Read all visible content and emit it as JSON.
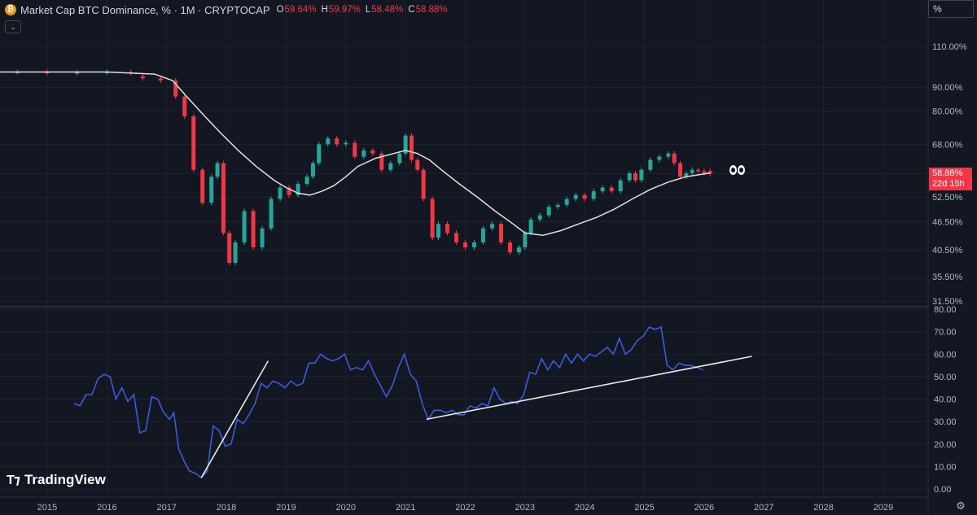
{
  "legend": {
    "title": "Market Cap BTC Dominance, % · 1M · CRYPTOCAP",
    "o_key": "O",
    "o": "59.64%",
    "h_key": "H",
    "h": "59.97%",
    "l_key": "L",
    "l": "58.48%",
    "c_key": "C",
    "c": "58.88%"
  },
  "scale_button": "%",
  "collapse_icon": "chevron-down-icon",
  "price_tag": {
    "value": "58.88%",
    "countdown": "22d 15h"
  },
  "watermark": "TradingView",
  "colors": {
    "up": "#26a69a",
    "down": "#f23645",
    "ma": "#e0e0e0",
    "osc": "#3b5bdb",
    "trend": "#e8e8e8"
  },
  "chart_data": [
    {
      "type": "candlestick",
      "title": "Market Cap BTC Dominance, % · 1M · CRYPTOCAP",
      "ylabel": "",
      "y_scale": "log",
      "yticks": [
        "110.00%",
        "90.00%",
        "80.00%",
        "68.00%",
        "58.88%",
        "52.50%",
        "46.50%",
        "40.50%",
        "35.50%",
        "31.50%"
      ],
      "x_ticks": [
        "2015",
        "2016",
        "2017",
        "2018",
        "2019",
        "2020",
        "2021",
        "2022",
        "2023",
        "2024",
        "2025",
        "2026",
        "2027",
        "2028",
        "2029"
      ],
      "x_tick_values": [
        2015,
        2016,
        2017,
        2018,
        2019,
        2020,
        2021,
        2022,
        2023,
        2024,
        2025,
        2026,
        2027,
        2028,
        2029
      ],
      "candles": [
        {
          "t": 2014.0,
          "o": 97,
          "c": 97
        },
        {
          "t": 2014.5,
          "o": 97,
          "c": 97
        },
        {
          "t": 2015.0,
          "o": 97,
          "c": 96.5
        },
        {
          "t": 2015.5,
          "o": 96.5,
          "c": 96.8
        },
        {
          "t": 2016.0,
          "o": 96.8,
          "c": 97
        },
        {
          "t": 2016.4,
          "o": 97,
          "c": 96.5
        },
        {
          "t": 2016.6,
          "o": 95,
          "c": 94
        },
        {
          "t": 2016.9,
          "o": 94,
          "c": 93
        },
        {
          "t": 2017.15,
          "o": 93,
          "c": 86
        },
        {
          "t": 2017.3,
          "o": 86,
          "c": 78
        },
        {
          "t": 2017.45,
          "o": 78,
          "c": 60
        },
        {
          "t": 2017.6,
          "o": 60,
          "c": 51
        },
        {
          "t": 2017.75,
          "o": 51,
          "c": 58
        },
        {
          "t": 2017.85,
          "o": 58,
          "c": 62
        },
        {
          "t": 2017.95,
          "o": 62,
          "c": 44
        },
        {
          "t": 2018.05,
          "o": 44,
          "c": 38
        },
        {
          "t": 2018.15,
          "o": 38,
          "c": 42
        },
        {
          "t": 2018.3,
          "o": 42,
          "c": 49
        },
        {
          "t": 2018.45,
          "o": 49,
          "c": 41
        },
        {
          "t": 2018.6,
          "o": 41,
          "c": 45
        },
        {
          "t": 2018.75,
          "o": 45,
          "c": 52
        },
        {
          "t": 2018.9,
          "o": 52,
          "c": 55
        },
        {
          "t": 2019.05,
          "o": 55,
          "c": 53
        },
        {
          "t": 2019.2,
          "o": 53,
          "c": 56
        },
        {
          "t": 2019.35,
          "o": 56,
          "c": 58
        },
        {
          "t": 2019.45,
          "o": 58,
          "c": 62
        },
        {
          "t": 2019.55,
          "o": 62,
          "c": 68
        },
        {
          "t": 2019.7,
          "o": 68,
          "c": 70
        },
        {
          "t": 2019.85,
          "o": 70,
          "c": 68
        },
        {
          "t": 2020.0,
          "o": 68,
          "c": 68.5
        },
        {
          "t": 2020.15,
          "o": 68.5,
          "c": 64
        },
        {
          "t": 2020.3,
          "o": 64,
          "c": 66
        },
        {
          "t": 2020.45,
          "o": 66,
          "c": 65
        },
        {
          "t": 2020.6,
          "o": 65,
          "c": 60
        },
        {
          "t": 2020.75,
          "o": 60,
          "c": 62
        },
        {
          "t": 2020.9,
          "o": 62,
          "c": 65
        },
        {
          "t": 2021.0,
          "o": 65,
          "c": 71
        },
        {
          "t": 2021.1,
          "o": 71,
          "c": 63
        },
        {
          "t": 2021.2,
          "o": 63,
          "c": 60
        },
        {
          "t": 2021.3,
          "o": 60,
          "c": 52
        },
        {
          "t": 2021.45,
          "o": 52,
          "c": 43
        },
        {
          "t": 2021.55,
          "o": 43,
          "c": 46
        },
        {
          "t": 2021.7,
          "o": 46,
          "c": 44
        },
        {
          "t": 2021.85,
          "o": 44,
          "c": 42
        },
        {
          "t": 2022.0,
          "o": 42,
          "c": 41
        },
        {
          "t": 2022.15,
          "o": 41,
          "c": 42
        },
        {
          "t": 2022.3,
          "o": 42,
          "c": 45
        },
        {
          "t": 2022.45,
          "o": 45,
          "c": 46
        },
        {
          "t": 2022.6,
          "o": 46,
          "c": 42
        },
        {
          "t": 2022.75,
          "o": 42,
          "c": 40
        },
        {
          "t": 2022.9,
          "o": 40,
          "c": 41
        },
        {
          "t": 2023.0,
          "o": 41,
          "c": 44
        },
        {
          "t": 2023.1,
          "o": 44,
          "c": 47
        },
        {
          "t": 2023.25,
          "o": 47,
          "c": 48
        },
        {
          "t": 2023.4,
          "o": 48,
          "c": 50
        },
        {
          "t": 2023.55,
          "o": 50,
          "c": 50.5
        },
        {
          "t": 2023.7,
          "o": 50.5,
          "c": 52
        },
        {
          "t": 2023.85,
          "o": 52,
          "c": 53
        },
        {
          "t": 2024.0,
          "o": 53,
          "c": 52
        },
        {
          "t": 2024.15,
          "o": 52,
          "c": 54
        },
        {
          "t": 2024.3,
          "o": 54,
          "c": 55
        },
        {
          "t": 2024.45,
          "o": 55,
          "c": 54
        },
        {
          "t": 2024.6,
          "o": 54,
          "c": 57
        },
        {
          "t": 2024.75,
          "o": 57,
          "c": 59
        },
        {
          "t": 2024.85,
          "o": 59,
          "c": 57
        },
        {
          "t": 2024.95,
          "o": 57,
          "c": 60
        },
        {
          "t": 2025.1,
          "o": 60,
          "c": 63
        },
        {
          "t": 2025.25,
          "o": 63,
          "c": 64
        },
        {
          "t": 2025.4,
          "o": 64,
          "c": 65
        },
        {
          "t": 2025.5,
          "o": 65,
          "c": 62
        },
        {
          "t": 2025.6,
          "o": 62,
          "c": 58
        },
        {
          "t": 2025.7,
          "o": 58,
          "c": 59
        },
        {
          "t": 2025.8,
          "o": 59,
          "c": 60
        },
        {
          "t": 2025.9,
          "o": 60,
          "c": 59.6
        },
        {
          "t": 2026.0,
          "o": 59.6,
          "c": 59.1
        },
        {
          "t": 2026.1,
          "o": 59.64,
          "c": 58.88
        }
      ],
      "ma": [
        [
          2014.0,
          97
        ],
        [
          2016.0,
          97
        ],
        [
          2016.8,
          96
        ],
        [
          2017.1,
          93
        ],
        [
          2017.3,
          87
        ],
        [
          2017.6,
          79
        ],
        [
          2017.9,
          72
        ],
        [
          2018.2,
          66
        ],
        [
          2018.5,
          61
        ],
        [
          2018.8,
          57
        ],
        [
          2019.0,
          55
        ],
        [
          2019.2,
          53.5
        ],
        [
          2019.4,
          53
        ],
        [
          2019.6,
          54
        ],
        [
          2019.8,
          55.5
        ],
        [
          2020.0,
          58
        ],
        [
          2020.2,
          61
        ],
        [
          2020.5,
          63.5
        ],
        [
          2020.8,
          65
        ],
        [
          2021.0,
          66
        ],
        [
          2021.2,
          65
        ],
        [
          2021.4,
          63
        ],
        [
          2021.6,
          60
        ],
        [
          2021.9,
          56
        ],
        [
          2022.2,
          52.5
        ],
        [
          2022.5,
          49
        ],
        [
          2022.8,
          46
        ],
        [
          2023.0,
          44
        ],
        [
          2023.3,
          43.5
        ],
        [
          2023.6,
          44.5
        ],
        [
          2023.9,
          46
        ],
        [
          2024.2,
          47.5
        ],
        [
          2024.5,
          49.5
        ],
        [
          2024.8,
          52
        ],
        [
          2025.1,
          54.5
        ],
        [
          2025.4,
          56.5
        ],
        [
          2025.7,
          58
        ],
        [
          2026.0,
          58.8
        ],
        [
          2026.1,
          59
        ]
      ]
    },
    {
      "type": "line",
      "yticks": [
        "80.00",
        "70.00",
        "60.00",
        "50.00",
        "40.00",
        "30.00",
        "20.00",
        "10.00",
        "0.00"
      ],
      "ylim": [
        0,
        80
      ],
      "series": [
        {
          "values": [
            [
              2015.45,
              38
            ],
            [
              2015.55,
              37
            ],
            [
              2015.65,
              42
            ],
            [
              2015.75,
              42
            ],
            [
              2015.85,
              49
            ],
            [
              2015.95,
              51
            ],
            [
              2016.05,
              50
            ],
            [
              2016.15,
              40
            ],
            [
              2016.25,
              45
            ],
            [
              2016.35,
              39
            ],
            [
              2016.45,
              42
            ],
            [
              2016.55,
              25
            ],
            [
              2016.65,
              26
            ],
            [
              2016.75,
              41
            ],
            [
              2016.85,
              40
            ],
            [
              2016.95,
              34
            ],
            [
              2017.05,
              31
            ],
            [
              2017.12,
              34
            ],
            [
              2017.2,
              18
            ],
            [
              2017.3,
              12
            ],
            [
              2017.38,
              8
            ],
            [
              2017.48,
              7
            ],
            [
              2017.58,
              5
            ],
            [
              2017.68,
              8
            ],
            [
              2017.78,
              28
            ],
            [
              2017.88,
              26
            ],
            [
              2017.98,
              19
            ],
            [
              2018.08,
              20
            ],
            [
              2018.18,
              31
            ],
            [
              2018.28,
              29
            ],
            [
              2018.38,
              33
            ],
            [
              2018.48,
              38
            ],
            [
              2018.58,
              47
            ],
            [
              2018.68,
              45
            ],
            [
              2018.78,
              48
            ],
            [
              2018.88,
              47
            ],
            [
              2018.98,
              45
            ],
            [
              2019.08,
              48
            ],
            [
              2019.18,
              46
            ],
            [
              2019.28,
              47
            ],
            [
              2019.38,
              56
            ],
            [
              2019.48,
              56
            ],
            [
              2019.58,
              60
            ],
            [
              2019.68,
              58
            ],
            [
              2019.78,
              57
            ],
            [
              2019.88,
              58
            ],
            [
              2019.98,
              60
            ],
            [
              2020.08,
              53
            ],
            [
              2020.18,
              54
            ],
            [
              2020.28,
              53
            ],
            [
              2020.38,
              57
            ],
            [
              2020.48,
              51
            ],
            [
              2020.58,
              46
            ],
            [
              2020.68,
              41
            ],
            [
              2020.78,
              46
            ],
            [
              2020.88,
              54
            ],
            [
              2020.98,
              60
            ],
            [
              2021.08,
              51
            ],
            [
              2021.18,
              48
            ],
            [
              2021.28,
              38
            ],
            [
              2021.38,
              31
            ],
            [
              2021.48,
              35
            ],
            [
              2021.58,
              35
            ],
            [
              2021.68,
              34
            ],
            [
              2021.78,
              35
            ],
            [
              2021.88,
              33
            ],
            [
              2021.98,
              33
            ],
            [
              2022.08,
              37
            ],
            [
              2022.18,
              36
            ],
            [
              2022.28,
              38
            ],
            [
              2022.38,
              37
            ],
            [
              2022.48,
              45
            ],
            [
              2022.58,
              40
            ],
            [
              2022.68,
              38
            ],
            [
              2022.78,
              39
            ],
            [
              2022.88,
              38
            ],
            [
              2022.98,
              42
            ],
            [
              2023.08,
              52
            ],
            [
              2023.18,
              51
            ],
            [
              2023.28,
              58
            ],
            [
              2023.38,
              53
            ],
            [
              2023.48,
              57
            ],
            [
              2023.58,
              54
            ],
            [
              2023.68,
              60
            ],
            [
              2023.78,
              56
            ],
            [
              2023.88,
              60
            ],
            [
              2023.98,
              57
            ],
            [
              2024.08,
              60
            ],
            [
              2024.18,
              59
            ],
            [
              2024.28,
              61
            ],
            [
              2024.38,
              63
            ],
            [
              2024.48,
              60
            ],
            [
              2024.58,
              67
            ],
            [
              2024.68,
              60
            ],
            [
              2024.78,
              62
            ],
            [
              2024.88,
              66
            ],
            [
              2024.98,
              68
            ],
            [
              2025.08,
              72
            ],
            [
              2025.18,
              71
            ],
            [
              2025.28,
              72
            ],
            [
              2025.38,
              55
            ],
            [
              2025.48,
              53
            ],
            [
              2025.58,
              56
            ],
            [
              2025.68,
              55
            ],
            [
              2025.78,
              55
            ],
            [
              2025.88,
              54
            ],
            [
              2025.98,
              53
            ]
          ]
        }
      ],
      "trendlines": [
        [
          [
            2017.58,
            5
          ],
          [
            2018.7,
            57
          ]
        ],
        [
          [
            2021.35,
            31
          ],
          [
            2026.8,
            59
          ]
        ]
      ]
    }
  ]
}
